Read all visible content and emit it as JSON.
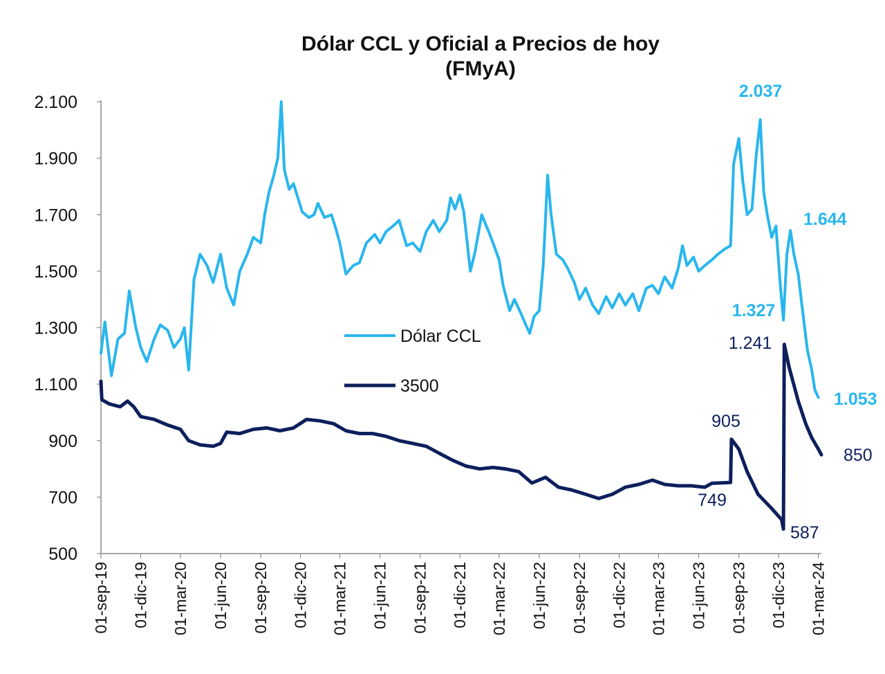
{
  "chart_data": {
    "type": "line",
    "title": "Dólar CCL y Oficial a Precios de hoy",
    "subtitle": "(FMyA)",
    "xlabel": "",
    "ylabel": "",
    "ylim": [
      500,
      2100
    ],
    "y_ticks": [
      "2.100",
      "1.900",
      "1.700",
      "1.500",
      "1.300",
      "1.100",
      "900",
      "700",
      "500"
    ],
    "x_ticks": [
      "01-sep-19",
      "01-dic-19",
      "01-mar-20",
      "01-jun-20",
      "01-sep-20",
      "01-dic-20",
      "01-mar-21",
      "01-jun-21",
      "01-sep-21",
      "01-dic-21",
      "01-mar-22",
      "01-jun-22",
      "01-sep-22",
      "01-dic-22",
      "01-mar-23",
      "01-jun-23",
      "01-sep-23",
      "01-dic-23",
      "01-mar-24"
    ],
    "grid": false,
    "legend_position": "center",
    "colors": {
      "ccl": "#29b6ee",
      "oficial": "#0d1f5c"
    },
    "series": [
      {
        "name": "Dólar CCL",
        "points": [
          [
            "2019-09-01",
            1210
          ],
          [
            "2019-09-10",
            1320
          ],
          [
            "2019-09-25",
            1130
          ],
          [
            "2019-10-10",
            1260
          ],
          [
            "2019-10-25",
            1280
          ],
          [
            "2019-11-05",
            1430
          ],
          [
            "2019-11-20",
            1300
          ],
          [
            "2019-12-01",
            1230
          ],
          [
            "2019-12-15",
            1180
          ],
          [
            "2020-01-01",
            1260
          ],
          [
            "2020-01-15",
            1310
          ],
          [
            "2020-02-01",
            1290
          ],
          [
            "2020-02-15",
            1230
          ],
          [
            "2020-03-01",
            1260
          ],
          [
            "2020-03-10",
            1300
          ],
          [
            "2020-03-20",
            1150
          ],
          [
            "2020-04-01",
            1470
          ],
          [
            "2020-04-15",
            1560
          ],
          [
            "2020-05-01",
            1520
          ],
          [
            "2020-05-15",
            1460
          ],
          [
            "2020-06-01",
            1560
          ],
          [
            "2020-06-15",
            1440
          ],
          [
            "2020-07-01",
            1380
          ],
          [
            "2020-07-15",
            1500
          ],
          [
            "2020-08-01",
            1560
          ],
          [
            "2020-08-15",
            1620
          ],
          [
            "2020-09-01",
            1600
          ],
          [
            "2020-09-10",
            1700
          ],
          [
            "2020-09-20",
            1780
          ],
          [
            "2020-10-01",
            1840
          ],
          [
            "2020-10-10",
            1900
          ],
          [
            "2020-10-18",
            2100
          ],
          [
            "2020-10-25",
            1860
          ],
          [
            "2020-11-05",
            1790
          ],
          [
            "2020-11-15",
            1810
          ],
          [
            "2020-11-25",
            1760
          ],
          [
            "2020-12-05",
            1710
          ],
          [
            "2020-12-20",
            1690
          ],
          [
            "2021-01-01",
            1700
          ],
          [
            "2021-01-10",
            1740
          ],
          [
            "2021-01-25",
            1690
          ],
          [
            "2021-02-10",
            1700
          ],
          [
            "2021-02-20",
            1650
          ],
          [
            "2021-03-01",
            1600
          ],
          [
            "2021-03-15",
            1490
          ],
          [
            "2021-04-01",
            1520
          ],
          [
            "2021-04-15",
            1530
          ],
          [
            "2021-05-01",
            1600
          ],
          [
            "2021-05-20",
            1630
          ],
          [
            "2021-06-01",
            1600
          ],
          [
            "2021-06-15",
            1640
          ],
          [
            "2021-07-01",
            1660
          ],
          [
            "2021-07-15",
            1680
          ],
          [
            "2021-08-01",
            1590
          ],
          [
            "2021-08-15",
            1600
          ],
          [
            "2021-09-01",
            1570
          ],
          [
            "2021-09-15",
            1640
          ],
          [
            "2021-10-01",
            1680
          ],
          [
            "2021-10-15",
            1640
          ],
          [
            "2021-11-01",
            1680
          ],
          [
            "2021-11-10",
            1760
          ],
          [
            "2021-11-20",
            1720
          ],
          [
            "2021-12-01",
            1770
          ],
          [
            "2021-12-10",
            1710
          ],
          [
            "2021-12-25",
            1500
          ],
          [
            "2022-01-05",
            1570
          ],
          [
            "2022-01-20",
            1700
          ],
          [
            "2022-02-05",
            1640
          ],
          [
            "2022-02-15",
            1600
          ],
          [
            "2022-03-01",
            1540
          ],
          [
            "2022-03-10",
            1450
          ],
          [
            "2022-03-25",
            1360
          ],
          [
            "2022-04-05",
            1400
          ],
          [
            "2022-04-20",
            1350
          ],
          [
            "2022-05-01",
            1310
          ],
          [
            "2022-05-10",
            1280
          ],
          [
            "2022-05-20",
            1340
          ],
          [
            "2022-06-01",
            1360
          ],
          [
            "2022-06-10",
            1520
          ],
          [
            "2022-06-20",
            1840
          ],
          [
            "2022-06-28",
            1700
          ],
          [
            "2022-07-10",
            1560
          ],
          [
            "2022-07-25",
            1540
          ],
          [
            "2022-08-05",
            1510
          ],
          [
            "2022-08-20",
            1460
          ],
          [
            "2022-09-01",
            1400
          ],
          [
            "2022-09-15",
            1440
          ],
          [
            "2022-10-01",
            1380
          ],
          [
            "2022-10-15",
            1350
          ],
          [
            "2022-11-01",
            1410
          ],
          [
            "2022-11-15",
            1370
          ],
          [
            "2022-12-01",
            1420
          ],
          [
            "2022-12-15",
            1380
          ],
          [
            "2023-01-01",
            1420
          ],
          [
            "2023-01-15",
            1360
          ],
          [
            "2023-02-01",
            1440
          ],
          [
            "2023-02-15",
            1450
          ],
          [
            "2023-03-01",
            1420
          ],
          [
            "2023-03-15",
            1480
          ],
          [
            "2023-04-01",
            1440
          ],
          [
            "2023-04-15",
            1510
          ],
          [
            "2023-04-25",
            1590
          ],
          [
            "2023-05-05",
            1520
          ],
          [
            "2023-05-20",
            1550
          ],
          [
            "2023-06-01",
            1500
          ],
          [
            "2023-06-15",
            1520
          ],
          [
            "2023-07-01",
            1540
          ],
          [
            "2023-07-15",
            1560
          ],
          [
            "2023-08-01",
            1580
          ],
          [
            "2023-08-13",
            1590
          ],
          [
            "2023-08-20",
            1880
          ],
          [
            "2023-09-01",
            1970
          ],
          [
            "2023-09-10",
            1820
          ],
          [
            "2023-09-20",
            1700
          ],
          [
            "2023-10-01",
            1720
          ],
          [
            "2023-10-10",
            1900
          ],
          [
            "2023-10-20",
            2037
          ],
          [
            "2023-10-28",
            1780
          ],
          [
            "2023-11-05",
            1700
          ],
          [
            "2023-11-15",
            1620
          ],
          [
            "2023-11-25",
            1660
          ],
          [
            "2023-12-05",
            1450
          ],
          [
            "2023-12-12",
            1327
          ],
          [
            "2023-12-20",
            1560
          ],
          [
            "2023-12-28",
            1644
          ],
          [
            "2024-01-05",
            1560
          ],
          [
            "2024-01-15",
            1490
          ],
          [
            "2024-01-25",
            1360
          ],
          [
            "2024-02-05",
            1220
          ],
          [
            "2024-02-15",
            1150
          ],
          [
            "2024-02-22",
            1080
          ],
          [
            "2024-03-01",
            1053
          ]
        ]
      },
      {
        "name": "3500",
        "points": [
          [
            "2019-09-01",
            1110
          ],
          [
            "2019-09-03",
            1045
          ],
          [
            "2019-09-20",
            1030
          ],
          [
            "2019-10-15",
            1020
          ],
          [
            "2019-11-01",
            1040
          ],
          [
            "2019-11-15",
            1020
          ],
          [
            "2019-12-01",
            985
          ],
          [
            "2020-01-01",
            975
          ],
          [
            "2020-02-01",
            955
          ],
          [
            "2020-03-01",
            940
          ],
          [
            "2020-03-20",
            900
          ],
          [
            "2020-04-15",
            885
          ],
          [
            "2020-05-15",
            880
          ],
          [
            "2020-06-01",
            890
          ],
          [
            "2020-06-15",
            930
          ],
          [
            "2020-07-15",
            925
          ],
          [
            "2020-08-15",
            940
          ],
          [
            "2020-09-15",
            945
          ],
          [
            "2020-10-15",
            935
          ],
          [
            "2020-11-15",
            945
          ],
          [
            "2020-12-15",
            975
          ],
          [
            "2021-01-15",
            970
          ],
          [
            "2021-02-15",
            960
          ],
          [
            "2021-03-15",
            935
          ],
          [
            "2021-04-15",
            925
          ],
          [
            "2021-05-15",
            925
          ],
          [
            "2021-06-15",
            915
          ],
          [
            "2021-07-15",
            900
          ],
          [
            "2021-08-15",
            890
          ],
          [
            "2021-09-15",
            880
          ],
          [
            "2021-10-15",
            855
          ],
          [
            "2021-11-15",
            830
          ],
          [
            "2021-12-15",
            810
          ],
          [
            "2022-01-15",
            800
          ],
          [
            "2022-02-15",
            805
          ],
          [
            "2022-03-15",
            800
          ],
          [
            "2022-04-15",
            790
          ],
          [
            "2022-05-15",
            750
          ],
          [
            "2022-06-15",
            770
          ],
          [
            "2022-07-15",
            735
          ],
          [
            "2022-08-15",
            725
          ],
          [
            "2022-09-15",
            710
          ],
          [
            "2022-10-15",
            695
          ],
          [
            "2022-11-15",
            710
          ],
          [
            "2022-12-15",
            735
          ],
          [
            "2023-01-15",
            745
          ],
          [
            "2023-02-15",
            760
          ],
          [
            "2023-03-15",
            745
          ],
          [
            "2023-04-15",
            740
          ],
          [
            "2023-05-15",
            740
          ],
          [
            "2023-06-15",
            735
          ],
          [
            "2023-07-01",
            749
          ],
          [
            "2023-08-13",
            752
          ],
          [
            "2023-08-15",
            905
          ],
          [
            "2023-09-01",
            870
          ],
          [
            "2023-09-20",
            790
          ],
          [
            "2023-10-15",
            710
          ],
          [
            "2023-11-15",
            660
          ],
          [
            "2023-12-08",
            620
          ],
          [
            "2023-12-12",
            587
          ],
          [
            "2023-12-14",
            1241
          ],
          [
            "2023-12-25",
            1160
          ],
          [
            "2024-01-15",
            1040
          ],
          [
            "2024-02-01",
            960
          ],
          [
            "2024-02-15",
            910
          ],
          [
            "2024-03-01",
            870
          ],
          [
            "2024-03-08",
            850
          ]
        ]
      }
    ],
    "annotations": [
      {
        "text": "2.037",
        "series": "Dólar CCL"
      },
      {
        "text": "1.644",
        "series": "Dólar CCL"
      },
      {
        "text": "1.327",
        "series": "Dólar CCL"
      },
      {
        "text": "1.053",
        "series": "Dólar CCL"
      },
      {
        "text": "905",
        "series": "3500"
      },
      {
        "text": "1.241",
        "series": "3500"
      },
      {
        "text": "749",
        "series": "3500"
      },
      {
        "text": "587",
        "series": "3500"
      },
      {
        "text": "850",
        "series": "3500"
      }
    ]
  }
}
